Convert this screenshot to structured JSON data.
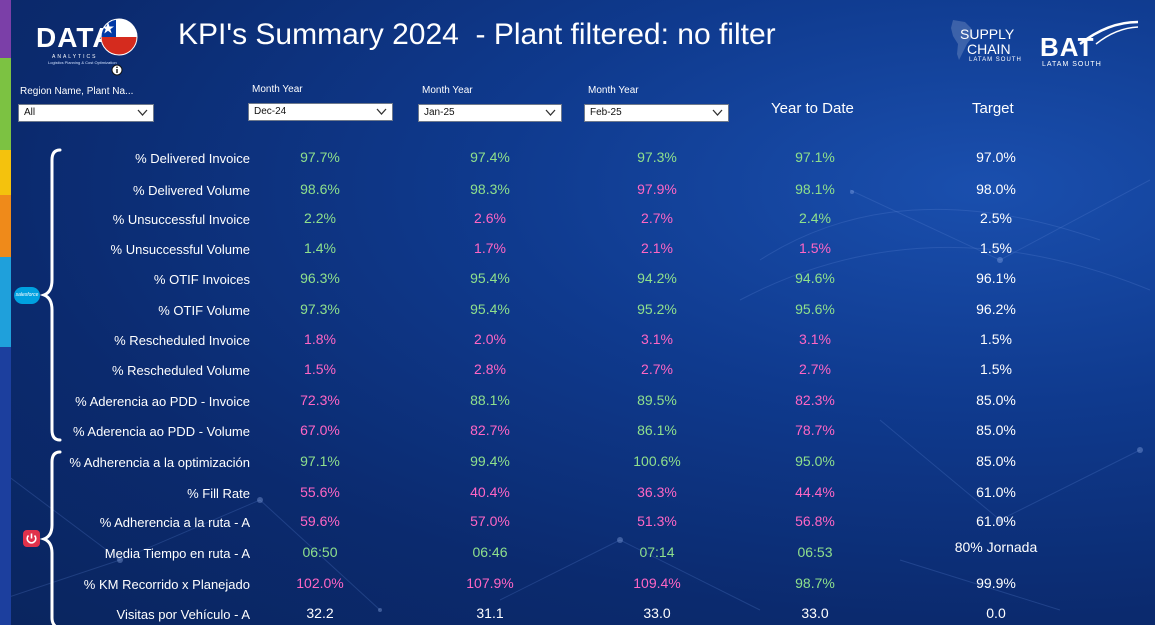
{
  "header": {
    "title": "KPI's Summary 2024  - Plant filtered: no filter",
    "logo_data_word": "DATA",
    "logo_data_sub": "ANALYTICS",
    "logo_data_tagline": "Logistics Planning & Cost Optimization",
    "logo_supply_line1": "SUPPLY",
    "logo_supply_line2": "CHAIN",
    "logo_supply_line3": "LATAM SOUTH",
    "logo_bat_word": "BAT",
    "logo_bat_sub": "LATAM SOUTH",
    "salesforce_badge": "salesforce"
  },
  "filters": {
    "region": {
      "label": "Region Name, Plant Na...",
      "value": "All"
    },
    "month1": {
      "label": "Month Year",
      "value": "Dec-24"
    },
    "month2": {
      "label": "Month Year",
      "value": "Jan-25"
    },
    "month3": {
      "label": "Month Year",
      "value": "Feb-25"
    }
  },
  "columns": {
    "ytd": "Year to Date",
    "target": "Target"
  },
  "colors": {
    "good": "#8fe08c",
    "bad": "#ff66c4",
    "neutral": "#ffffff"
  },
  "rows": [
    {
      "label": "% Delivered Invoice",
      "values": [
        "97.7%",
        "97.4%",
        "97.3%",
        "97.1%"
      ],
      "status": [
        "good",
        "good",
        "good",
        "good"
      ],
      "target": "97.0%"
    },
    {
      "label": "% Delivered Volume",
      "values": [
        "98.6%",
        "98.3%",
        "97.9%",
        "98.1%"
      ],
      "status": [
        "good",
        "good",
        "bad",
        "good"
      ],
      "target": "98.0%"
    },
    {
      "label": "% Unsuccessful Invoice",
      "values": [
        "2.2%",
        "2.6%",
        "2.7%",
        "2.4%"
      ],
      "status": [
        "good",
        "bad",
        "bad",
        "good"
      ],
      "target": "2.5%"
    },
    {
      "label": "% Unsuccessful Volume",
      "values": [
        "1.4%",
        "1.7%",
        "2.1%",
        "1.5%"
      ],
      "status": [
        "good",
        "bad",
        "bad",
        "bad"
      ],
      "target": "1.5%"
    },
    {
      "label": "% OTIF Invoices",
      "values": [
        "96.3%",
        "95.4%",
        "94.2%",
        "94.6%"
      ],
      "status": [
        "good",
        "good",
        "good",
        "good"
      ],
      "target": "96.1%"
    },
    {
      "label": "% OTIF Volume",
      "values": [
        "97.3%",
        "95.4%",
        "95.2%",
        "95.6%"
      ],
      "status": [
        "good",
        "good",
        "good",
        "good"
      ],
      "target": "96.2%"
    },
    {
      "label": "% Rescheduled Invoice",
      "values": [
        "1.8%",
        "2.0%",
        "3.1%",
        "3.1%"
      ],
      "status": [
        "bad",
        "bad",
        "bad",
        "bad"
      ],
      "target": "1.5%"
    },
    {
      "label": "% Rescheduled Volume",
      "values": [
        "1.5%",
        "2.8%",
        "2.7%",
        "2.7%"
      ],
      "status": [
        "bad",
        "bad",
        "bad",
        "bad"
      ],
      "target": "1.5%"
    },
    {
      "label": "% Aderencia ao PDD - Invoice",
      "values": [
        "72.3%",
        "88.1%",
        "89.5%",
        "82.3%"
      ],
      "status": [
        "bad",
        "good",
        "good",
        "bad"
      ],
      "target": "85.0%"
    },
    {
      "label": "% Aderencia ao PDD - Volume",
      "values": [
        "67.0%",
        "82.7%",
        "86.1%",
        "78.7%"
      ],
      "status": [
        "bad",
        "bad",
        "good",
        "bad"
      ],
      "target": "85.0%"
    },
    {
      "label": "% Adherencia a la optimización",
      "values": [
        "97.1%",
        "99.4%",
        "100.6%",
        "95.0%"
      ],
      "status": [
        "good",
        "good",
        "good",
        "good"
      ],
      "target": "85.0%"
    },
    {
      "label": "% Fill Rate",
      "values": [
        "55.6%",
        "40.4%",
        "36.3%",
        "44.4%"
      ],
      "status": [
        "bad",
        "bad",
        "bad",
        "bad"
      ],
      "target": "61.0%"
    },
    {
      "label": "% Adherencia a la ruta - A",
      "values": [
        "59.6%",
        "57.0%",
        "51.3%",
        "56.8%"
      ],
      "status": [
        "bad",
        "bad",
        "bad",
        "bad"
      ],
      "target": "61.0%"
    },
    {
      "label": "Media Tiempo en ruta - A",
      "values": [
        "06:50",
        "06:46",
        "07:14",
        "06:53"
      ],
      "status": [
        "good",
        "good",
        "good",
        "good"
      ],
      "target": "80% Jornada"
    },
    {
      "label": "% KM Recorrido x Planejado",
      "values": [
        "102.0%",
        "107.9%",
        "109.4%",
        "98.7%"
      ],
      "status": [
        "bad",
        "bad",
        "bad",
        "good"
      ],
      "target": "99.9%"
    },
    {
      "label": "Visitas por Vehículo - A",
      "values": [
        "32.2",
        "31.1",
        "33.0",
        "33.0"
      ],
      "status": [
        "neutral",
        "neutral",
        "neutral",
        "neutral"
      ],
      "target": "0.0"
    }
  ]
}
